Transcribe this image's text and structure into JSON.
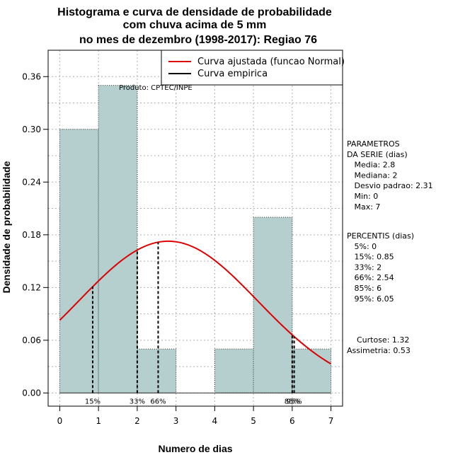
{
  "chart_data": {
    "type": "bar",
    "title_lines": [
      "Histograma e curva de densidade de probabilidade",
      "com chuva acima de 5 mm",
      "no mes de dezembro (1998-2017): Regiao 76"
    ],
    "xlabel": "Numero de dias",
    "ylabel": "Densidade de probabilidade",
    "xlim": [
      -0.3,
      7.3
    ],
    "ylim": [
      -0.015,
      0.39
    ],
    "x_ticks": [
      0,
      1,
      2,
      3,
      4,
      5,
      6,
      7
    ],
    "x_tick_labels": [
      "0",
      "1",
      "2",
      "3",
      "4",
      "5",
      "6",
      "7"
    ],
    "y_ticks": [
      0.0,
      0.06,
      0.12,
      0.18,
      0.24,
      0.3,
      0.36
    ],
    "y_tick_labels": [
      "0.00",
      "0.06",
      "0.12",
      "0.18",
      "0.24",
      "0.30",
      "0.36"
    ],
    "bins": [
      {
        "start": 0,
        "end": 1,
        "value": 0.3
      },
      {
        "start": 1,
        "end": 2,
        "value": 0.35
      },
      {
        "start": 2,
        "end": 3,
        "value": 0.05
      },
      {
        "start": 3,
        "end": 4,
        "value": 0.0
      },
      {
        "start": 4,
        "end": 5,
        "value": 0.05
      },
      {
        "start": 5,
        "end": 6,
        "value": 0.2
      },
      {
        "start": 6,
        "end": 7,
        "value": 0.05
      }
    ],
    "normal_fit": {
      "mean": 2.8,
      "sd": 2.31,
      "x_from": 0,
      "x_to": 7
    },
    "percentile_lines": [
      {
        "label": "15%",
        "x": 0.85
      },
      {
        "label": "33%",
        "x": 2
      },
      {
        "label": "66%",
        "x": 2.54
      },
      {
        "label": "85%",
        "x": 6
      },
      {
        "label": "95%",
        "x": 6.05
      }
    ],
    "legend": [
      {
        "label": "Curva ajustada (funcao Normal)",
        "color": "#dd0000"
      },
      {
        "label": "Curva empirica",
        "color": "#000000"
      }
    ],
    "annotation": "Produto: CPTEC/INPE",
    "bar_color": "#b5cece",
    "curve_color": "#dd0000",
    "side_panel": {
      "params_lines": [
        "PARAMETROS",
        "DA SERIE (dias)",
        "   Media: 2.8",
        "   Mediana: 2",
        "   Desvio padrao: 2.31",
        "   Min: 0",
        "   Max: 7"
      ],
      "percentis_lines": [
        "PERCENTIS (dias)",
        "   5%: 0",
        "   15%: 0.85",
        "   33%: 2",
        "   66%: 2.54",
        "   85%: 6",
        "   95%: 6.05"
      ],
      "stats_lines": [
        "    Curtose: 1.32",
        "Assimetria: 0.53"
      ]
    }
  }
}
